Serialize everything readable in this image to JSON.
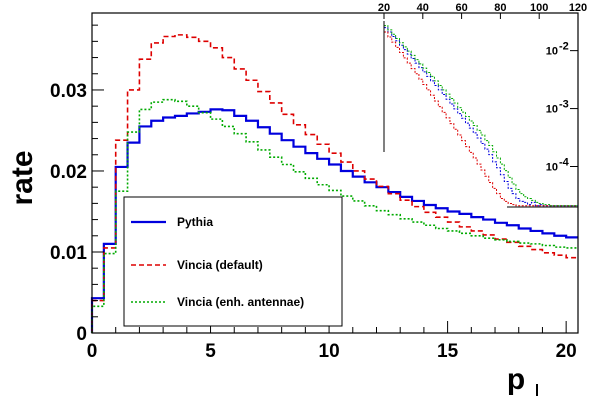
{
  "chart_data": [
    {
      "type": "line",
      "style": "step-histogram",
      "xlabel": "p",
      "ylabel": "rate",
      "xlim": [
        0,
        20.5
      ],
      "ylim": [
        0,
        0.0395
      ],
      "x_ticks": [
        0,
        5,
        10,
        15,
        20
      ],
      "y_ticks": [
        0,
        0.01,
        0.02,
        0.03
      ],
      "y_tick_labels": [
        "0",
        "0.01",
        "0.02",
        "0.03"
      ],
      "bin_width": 0.5,
      "bin_start": 0,
      "legend_placement": "bottom-left",
      "series": [
        {
          "name": "Pythia",
          "color": "#0000dd",
          "line": "solid",
          "values": [
            0.0043,
            0.011,
            0.0205,
            0.0235,
            0.0255,
            0.0262,
            0.0266,
            0.0268,
            0.0271,
            0.0273,
            0.0276,
            0.0275,
            0.0268,
            0.0262,
            0.0254,
            0.0246,
            0.0238,
            0.023,
            0.0222,
            0.0215,
            0.0208,
            0.02,
            0.0193,
            0.0186,
            0.018,
            0.0174,
            0.0168,
            0.0163,
            0.0158,
            0.0154,
            0.015,
            0.0147,
            0.0143,
            0.014,
            0.0136,
            0.0133,
            0.0129,
            0.0126,
            0.0123,
            0.012,
            0.0118
          ]
        },
        {
          "name": "Vincia (default)",
          "color": "#dd0000",
          "line": "dashed",
          "values": [
            0.004,
            0.0105,
            0.0238,
            0.03,
            0.0338,
            0.0358,
            0.0366,
            0.0368,
            0.0365,
            0.036,
            0.0352,
            0.034,
            0.0326,
            0.0312,
            0.0298,
            0.0284,
            0.027,
            0.0257,
            0.0245,
            0.0233,
            0.0222,
            0.0211,
            0.02,
            0.019,
            0.0181,
            0.0172,
            0.0164,
            0.0156,
            0.0149,
            0.0143,
            0.0137,
            0.0131,
            0.0126,
            0.0121,
            0.0116,
            0.0112,
            0.0107,
            0.0103,
            0.0099,
            0.0096,
            0.0093
          ]
        },
        {
          "name": "Vincia (enh. antennae)",
          "color": "#00aa00",
          "line": "dotted",
          "values": [
            0.0033,
            0.0098,
            0.0175,
            0.0248,
            0.0276,
            0.0285,
            0.0288,
            0.0286,
            0.028,
            0.0272,
            0.0264,
            0.0255,
            0.0246,
            0.0236,
            0.0226,
            0.0217,
            0.0208,
            0.0199,
            0.0191,
            0.0183,
            0.0176,
            0.0169,
            0.0163,
            0.0157,
            0.0151,
            0.0146,
            0.0141,
            0.0137,
            0.0133,
            0.0129,
            0.0126,
            0.0123,
            0.012,
            0.0117,
            0.0115,
            0.0113,
            0.0111,
            0.011,
            0.0108,
            0.0106,
            0.0105
          ]
        }
      ]
    },
    {
      "type": "line",
      "style": "step-histogram",
      "inset": true,
      "yscale": "log",
      "xlim": [
        20,
        120
      ],
      "ylim": [
        2e-05,
        0.03
      ],
      "x_tick_labels": [
        "20",
        "40",
        "60",
        "80",
        "100",
        "120"
      ],
      "x_ticks": [
        20,
        40,
        60,
        80,
        100,
        120
      ],
      "y_tick_labels": [
        "10",
        "10",
        "10"
      ],
      "y_tick_exponents": [
        "-2",
        "-3",
        "-4"
      ],
      "y_ticks": [
        0.01,
        0.001,
        0.0001
      ],
      "bin_width": 2,
      "series": [
        {
          "name": "Pythia",
          "color": "#0000dd",
          "values": [
            0.025,
            0.021,
            0.0175,
            0.0148,
            0.0124,
            0.0104,
            0.0087,
            0.0073,
            0.0061,
            0.0051,
            0.0043,
            0.0036,
            0.003,
            0.0025,
            0.0021,
            0.00175,
            0.00145,
            0.0012,
            0.00099,
            0.00082,
            0.00068,
            0.00056,
            0.00046,
            0.00038,
            0.00031,
            0.00025,
            0.0002,
            0.00016,
            0.00012,
            9.5e-05,
            7.2e-05,
            5.5e-05,
            4.2e-05,
            3.4e-05,
            2.8e-05,
            2.5e-05,
            2.4e-05,
            2.2e-05,
            2.4e-05,
            2.1e-05,
            2.2e-05,
            2.1e-05,
            2.1e-05,
            2.1e-05,
            2.1e-05,
            2.1e-05,
            2.1e-05,
            2.1e-05,
            2.1e-05,
            2.1e-05
          ]
        },
        {
          "name": "Vincia (default)",
          "color": "#dd0000",
          "values": [
            0.021,
            0.0172,
            0.014,
            0.0114,
            0.0093,
            0.0075,
            0.0061,
            0.0049,
            0.004,
            0.0032,
            0.0026,
            0.0021,
            0.0017,
            0.00135,
            0.00108,
            0.00086,
            0.00069,
            0.00055,
            0.00044,
            0.00035,
            0.00028,
            0.00022,
            0.000175,
            0.00014,
            0.00011,
            8.7e-05,
            6.8e-05,
            5.3e-05,
            4.2e-05,
            3.4e-05,
            2.8e-05,
            2.5e-05,
            2.3e-05,
            2.2e-05,
            2.1e-05,
            2.1e-05,
            2.1e-05,
            2.1e-05,
            2.1e-05,
            2.1e-05,
            2.1e-05,
            2.1e-05,
            2.1e-05,
            2.1e-05,
            2.1e-05,
            2.1e-05,
            2.1e-05,
            2.1e-05,
            2.1e-05,
            2.1e-05
          ]
        },
        {
          "name": "Vincia (enh. antennae)",
          "color": "#00aa00",
          "values": [
            0.027,
            0.0228,
            0.0192,
            0.0162,
            0.0137,
            0.0116,
            0.0098,
            0.0083,
            0.007,
            0.0059,
            0.005,
            0.0042,
            0.0036,
            0.003,
            0.0025,
            0.0021,
            0.00178,
            0.00149,
            0.00125,
            0.00104,
            0.00087,
            0.00073,
            0.00061,
            0.00051,
            0.00042,
            0.00035,
            0.00028,
            0.00023,
            0.00018,
            0.00014,
            0.00011,
            8.5e-05,
            6.5e-05,
            5e-05,
            4e-05,
            3.4e-05,
            3e-05,
            2.8e-05,
            2.6e-05,
            2.4e-05,
            2.3e-05,
            2.2e-05,
            2.2e-05,
            2.1e-05,
            2.1e-05,
            2.1e-05,
            2.1e-05,
            2.1e-05,
            2.1e-05,
            2.1e-05
          ]
        }
      ]
    }
  ]
}
